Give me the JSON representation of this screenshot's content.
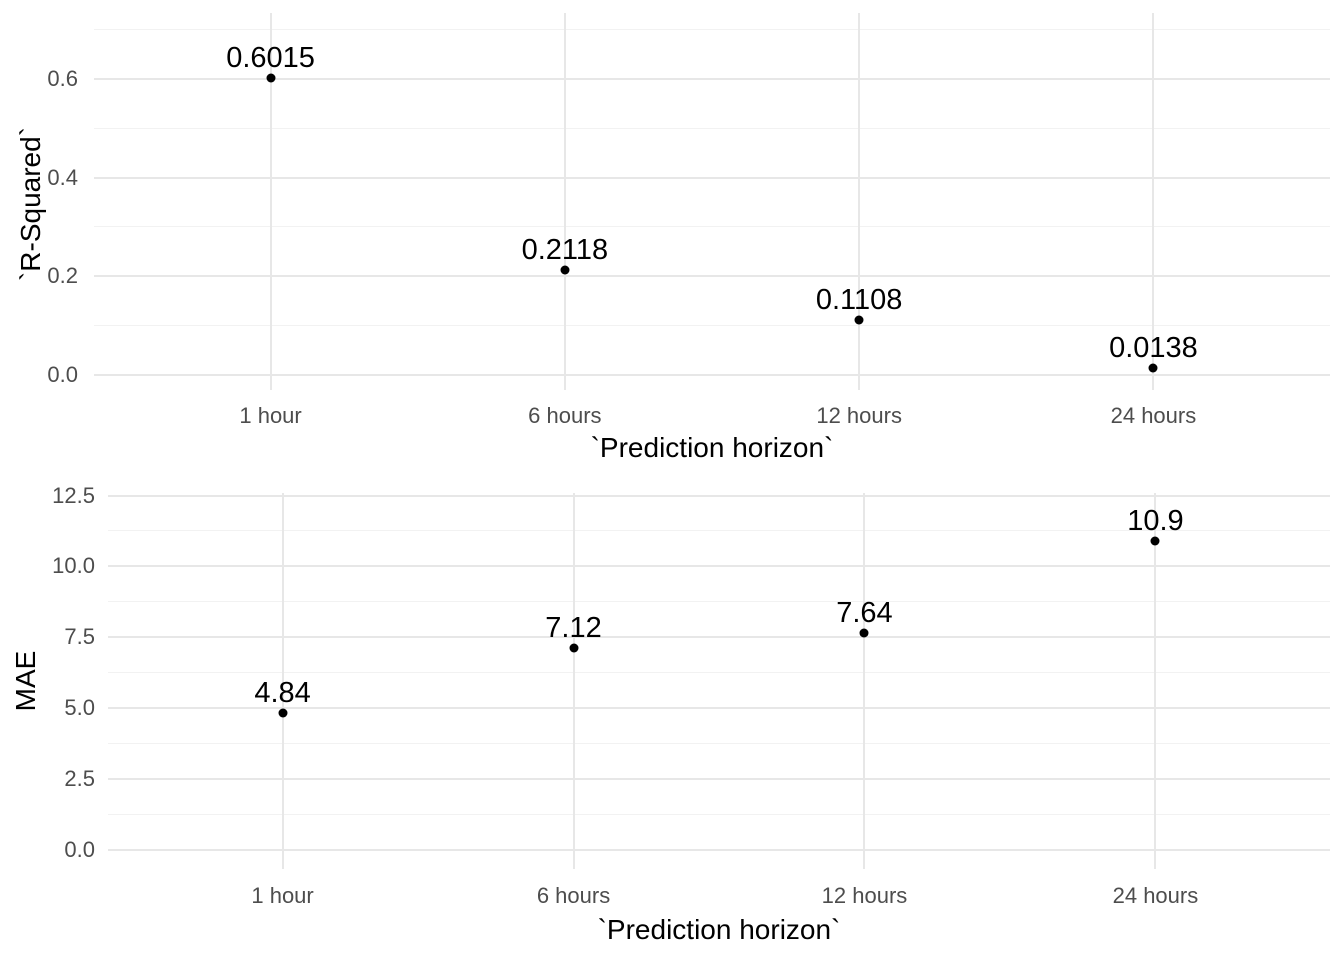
{
  "chart_data": [
    {
      "type": "scatter",
      "title": "",
      "xlabel": "`Prediction horizon`",
      "ylabel": "`R-Squared`",
      "categories": [
        "1 hour",
        "6 hours",
        "12 hours",
        "24 hours"
      ],
      "values": [
        0.6015,
        0.2118,
        0.1108,
        0.0138
      ],
      "point_labels": [
        "0.6015",
        "0.2118",
        "0.1108",
        "0.0138"
      ],
      "yticks": [
        0.0,
        0.2,
        0.4,
        0.6
      ],
      "ytick_labels": [
        "0.0",
        "0.2",
        "0.4",
        "0.6"
      ],
      "yminor": [
        0.1,
        0.3,
        0.5,
        0.7
      ],
      "ylim": [
        -0.0304,
        0.7335
      ],
      "grid": true,
      "legend": false
    },
    {
      "type": "scatter",
      "title": "",
      "xlabel": "`Prediction horizon`",
      "ylabel": "MAE",
      "categories": [
        "1 hour",
        "6 hours",
        "12 hours",
        "24 hours"
      ],
      "values": [
        4.84,
        7.12,
        7.64,
        10.9
      ],
      "point_labels": [
        "4.84",
        "7.12",
        "7.64",
        "10.9"
      ],
      "yticks": [
        0.0,
        2.5,
        5.0,
        7.5,
        10.0,
        12.5
      ],
      "ytick_labels": [
        "0.0",
        "2.5",
        "5.0",
        "7.5",
        "10.0",
        "12.5"
      ],
      "yminor": [
        1.25,
        3.75,
        6.25,
        8.75,
        11.25
      ],
      "ylim": [
        -0.67,
        12.59
      ],
      "grid": true,
      "legend": false
    }
  ],
  "styles": {
    "point_color": "#000000",
    "label_color": "#000000",
    "tick_color": "#4d4d4d",
    "title_color": "#000000",
    "grid_major_color": "#e7e7e7",
    "grid_minor_color": "#f2f2f2",
    "background": "#ffffff"
  }
}
